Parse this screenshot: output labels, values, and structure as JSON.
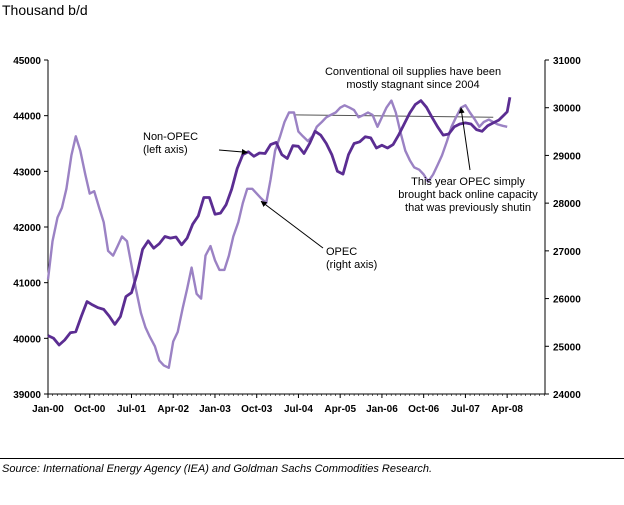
{
  "units_label": "Thousand b/d",
  "source": "Source: International Energy Agency (IEA) and Goldman Sachs Commodities Research.",
  "colors": {
    "non_opec": "#5b2d92",
    "opec": "#9b82c4",
    "axis": "#000000",
    "reference": "#555555"
  },
  "chart_data": {
    "type": "line",
    "x_ticks": [
      "Jan-00",
      "Oct-00",
      "Jul-01",
      "Apr-02",
      "Jan-03",
      "Oct-03",
      "Jul-04",
      "Apr-05",
      "Jan-06",
      "Oct-06",
      "Jul-07",
      "Apr-08"
    ],
    "x_range": [
      2000.0,
      2008.93
    ],
    "y_left": {
      "ticks": [
        "39000",
        "40000",
        "41000",
        "42000",
        "43000",
        "44000",
        "45000"
      ],
      "range": [
        39000,
        45000
      ]
    },
    "y_right": {
      "ticks": [
        "24000",
        "25000",
        "26000",
        "27000",
        "28000",
        "29000",
        "30000",
        "31000"
      ],
      "range": [
        24000,
        31000
      ]
    },
    "grid": false,
    "series": [
      {
        "name": "Non-OPEC",
        "axis": "left",
        "points": [
          [
            2000.0,
            40050
          ],
          [
            2000.1,
            40000
          ],
          [
            2000.2,
            39880
          ],
          [
            2000.3,
            39970
          ],
          [
            2000.4,
            40100
          ],
          [
            2000.5,
            40120
          ],
          [
            2000.6,
            40400
          ],
          [
            2000.7,
            40660
          ],
          [
            2000.8,
            40600
          ],
          [
            2000.9,
            40550
          ],
          [
            2001.0,
            40520
          ],
          [
            2001.1,
            40400
          ],
          [
            2001.2,
            40250
          ],
          [
            2001.3,
            40390
          ],
          [
            2001.4,
            40750
          ],
          [
            2001.5,
            40820
          ],
          [
            2001.6,
            41150
          ],
          [
            2001.7,
            41600
          ],
          [
            2001.8,
            41750
          ],
          [
            2001.9,
            41620
          ],
          [
            2002.0,
            41700
          ],
          [
            2002.1,
            41830
          ],
          [
            2002.2,
            41800
          ],
          [
            2002.3,
            41820
          ],
          [
            2002.4,
            41680
          ],
          [
            2002.5,
            41800
          ],
          [
            2002.6,
            42050
          ],
          [
            2002.7,
            42200
          ],
          [
            2002.8,
            42530
          ],
          [
            2002.9,
            42530
          ],
          [
            2003.0,
            42230
          ],
          [
            2003.1,
            42250
          ],
          [
            2003.2,
            42400
          ],
          [
            2003.3,
            42680
          ],
          [
            2003.4,
            43050
          ],
          [
            2003.5,
            43300
          ],
          [
            2003.6,
            43350
          ],
          [
            2003.7,
            43270
          ],
          [
            2003.8,
            43330
          ],
          [
            2003.9,
            43320
          ],
          [
            2004.0,
            43480
          ],
          [
            2004.1,
            43520
          ],
          [
            2004.2,
            43300
          ],
          [
            2004.3,
            43230
          ],
          [
            2004.4,
            43460
          ],
          [
            2004.5,
            43450
          ],
          [
            2004.6,
            43320
          ],
          [
            2004.7,
            43500
          ],
          [
            2004.8,
            43720
          ],
          [
            2004.9,
            43650
          ],
          [
            2005.0,
            43500
          ],
          [
            2005.1,
            43300
          ],
          [
            2005.2,
            43000
          ],
          [
            2005.3,
            42950
          ],
          [
            2005.4,
            43300
          ],
          [
            2005.5,
            43500
          ],
          [
            2005.6,
            43530
          ],
          [
            2005.7,
            43620
          ],
          [
            2005.8,
            43600
          ],
          [
            2005.9,
            43420
          ],
          [
            2006.0,
            43470
          ],
          [
            2006.1,
            43420
          ],
          [
            2006.2,
            43480
          ],
          [
            2006.3,
            43650
          ],
          [
            2006.4,
            43850
          ],
          [
            2006.5,
            44050
          ],
          [
            2006.6,
            44200
          ],
          [
            2006.7,
            44270
          ],
          [
            2006.8,
            44150
          ],
          [
            2006.9,
            43970
          ],
          [
            2007.0,
            43800
          ],
          [
            2007.1,
            43650
          ],
          [
            2007.2,
            43670
          ],
          [
            2007.3,
            43800
          ],
          [
            2007.4,
            43850
          ],
          [
            2007.5,
            43870
          ],
          [
            2007.6,
            43850
          ],
          [
            2007.7,
            43750
          ],
          [
            2007.8,
            43720
          ],
          [
            2007.9,
            43820
          ],
          [
            2008.0,
            43870
          ],
          [
            2008.1,
            43920
          ],
          [
            2008.2,
            44020
          ],
          [
            2008.25,
            44070
          ],
          [
            2008.3,
            44330
          ]
        ]
      },
      {
        "name": "OPEC",
        "axis": "right",
        "points": [
          [
            2000.0,
            26400
          ],
          [
            2000.08,
            27200
          ],
          [
            2000.17,
            27700
          ],
          [
            2000.25,
            27900
          ],
          [
            2000.33,
            28300
          ],
          [
            2000.42,
            29000
          ],
          [
            2000.5,
            29400
          ],
          [
            2000.58,
            29100
          ],
          [
            2000.67,
            28600
          ],
          [
            2000.75,
            28200
          ],
          [
            2000.83,
            28250
          ],
          [
            2000.92,
            27900
          ],
          [
            2001.0,
            27600
          ],
          [
            2001.08,
            27000
          ],
          [
            2001.17,
            26900
          ],
          [
            2001.25,
            27100
          ],
          [
            2001.33,
            27300
          ],
          [
            2001.42,
            27200
          ],
          [
            2001.5,
            26700
          ],
          [
            2001.58,
            26200
          ],
          [
            2001.67,
            25700
          ],
          [
            2001.75,
            25400
          ],
          [
            2001.83,
            25200
          ],
          [
            2001.92,
            25000
          ],
          [
            2002.0,
            24700
          ],
          [
            2002.08,
            24600
          ],
          [
            2002.17,
            24550
          ],
          [
            2002.25,
            25100
          ],
          [
            2002.33,
            25300
          ],
          [
            2002.42,
            25800
          ],
          [
            2002.5,
            26200
          ],
          [
            2002.58,
            26650
          ],
          [
            2002.67,
            26100
          ],
          [
            2002.75,
            26000
          ],
          [
            2002.83,
            26900
          ],
          [
            2002.92,
            27100
          ],
          [
            2003.0,
            26800
          ],
          [
            2003.08,
            26600
          ],
          [
            2003.17,
            26600
          ],
          [
            2003.25,
            26900
          ],
          [
            2003.33,
            27300
          ],
          [
            2003.42,
            27600
          ],
          [
            2003.5,
            28000
          ],
          [
            2003.58,
            28300
          ],
          [
            2003.67,
            28300
          ],
          [
            2003.75,
            28200
          ],
          [
            2003.83,
            28100
          ],
          [
            2003.92,
            28000
          ],
          [
            2004.0,
            28500
          ],
          [
            2004.08,
            29100
          ],
          [
            2004.17,
            29400
          ],
          [
            2004.25,
            29700
          ],
          [
            2004.33,
            29900
          ],
          [
            2004.42,
            29900
          ],
          [
            2004.5,
            29500
          ],
          [
            2004.58,
            29400
          ],
          [
            2004.67,
            29300
          ],
          [
            2004.75,
            29400
          ],
          [
            2004.83,
            29600
          ],
          [
            2004.92,
            29700
          ],
          [
            2005.0,
            29800
          ],
          [
            2005.08,
            29850
          ],
          [
            2005.17,
            29900
          ],
          [
            2005.25,
            30000
          ],
          [
            2005.33,
            30050
          ],
          [
            2005.42,
            30000
          ],
          [
            2005.5,
            29950
          ],
          [
            2005.58,
            29800
          ],
          [
            2005.67,
            29850
          ],
          [
            2005.75,
            29900
          ],
          [
            2005.83,
            29850
          ],
          [
            2005.92,
            29600
          ],
          [
            2006.0,
            29800
          ],
          [
            2006.08,
            30000
          ],
          [
            2006.17,
            30150
          ],
          [
            2006.25,
            29900
          ],
          [
            2006.33,
            29500
          ],
          [
            2006.42,
            29100
          ],
          [
            2006.5,
            28900
          ],
          [
            2006.58,
            28750
          ],
          [
            2006.67,
            28700
          ],
          [
            2006.75,
            28600
          ],
          [
            2006.83,
            28450
          ],
          [
            2006.92,
            28600
          ],
          [
            2007.0,
            28800
          ],
          [
            2007.08,
            29000
          ],
          [
            2007.17,
            29300
          ],
          [
            2007.25,
            29600
          ],
          [
            2007.33,
            29800
          ],
          [
            2007.42,
            30000
          ],
          [
            2007.5,
            30050
          ],
          [
            2007.58,
            29900
          ],
          [
            2007.67,
            29750
          ],
          [
            2007.75,
            29600
          ],
          [
            2007.83,
            29700
          ],
          [
            2007.92,
            29750
          ],
          [
            2008.0,
            29700
          ],
          [
            2008.08,
            29650
          ],
          [
            2008.17,
            29620
          ],
          [
            2008.25,
            29600
          ]
        ]
      }
    ],
    "reference_line": {
      "x1": 2004.42,
      "y1": 29850,
      "x2": 2008.0,
      "y2": 29800,
      "axis": "right"
    },
    "annotations": [
      {
        "id": "stagnant",
        "lines": [
          "Conventional oil supplies have been",
          "mostly stagnant since 2004"
        ]
      },
      {
        "id": "nonopec",
        "lines": [
          "Non-OPEC",
          "(left axis)"
        ],
        "target_series": "Non-OPEC",
        "target_x": 2003.58
      },
      {
        "id": "opec",
        "lines": [
          "OPEC",
          "(right axis)"
        ],
        "target_series": "OPEC",
        "target_x": 2003.83
      },
      {
        "id": "opec2007",
        "lines": [
          "This year OPEC simply",
          "brought back online capacity",
          "that was previously shutin"
        ],
        "target_series": "OPEC",
        "target_x": 2007.42
      }
    ]
  }
}
